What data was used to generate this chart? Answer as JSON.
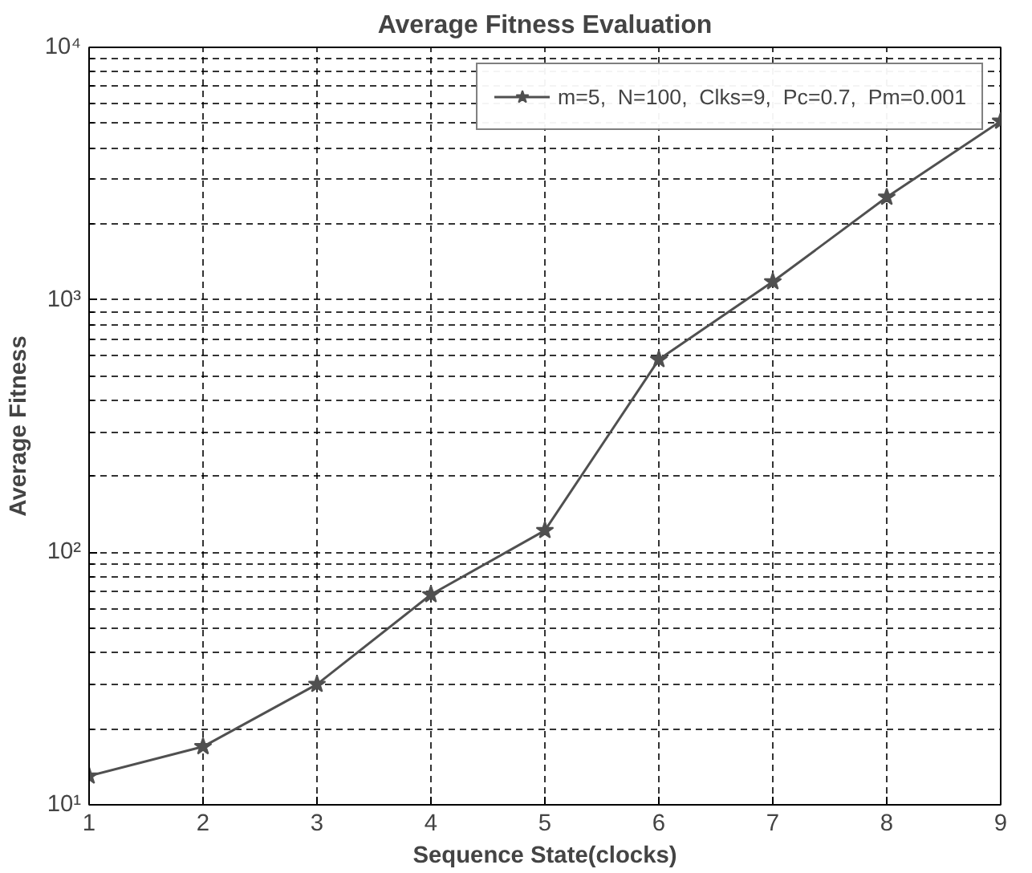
{
  "chart_data": {
    "type": "line",
    "title": "Average Fitness Evaluation",
    "xlabel": "Sequence State(clocks)",
    "ylabel": "Average Fitness",
    "x": [
      1,
      2,
      3,
      4,
      5,
      6,
      7,
      8,
      9
    ],
    "series": [
      {
        "name": "m=5,  N=100,  Clks=9,  Pc=0.7,  Pm=0.001",
        "color": "#505050",
        "values": [
          13,
          17,
          30,
          68,
          122,
          580,
          1180,
          2550,
          5100
        ]
      }
    ],
    "xlim": [
      1,
      9
    ],
    "xticks": [
      1,
      2,
      3,
      4,
      5,
      6,
      7,
      8,
      9
    ],
    "ylim": [
      10,
      10000
    ],
    "yticks": [
      {
        "value": 10,
        "label": "10¹"
      },
      {
        "value": 100,
        "label": "10²"
      },
      {
        "value": 1000,
        "label": "10³"
      },
      {
        "value": 10000,
        "label": "10⁴"
      }
    ],
    "log": "y",
    "grid": true,
    "legend": "top right",
    "marker": "star",
    "line_style": "solid"
  }
}
